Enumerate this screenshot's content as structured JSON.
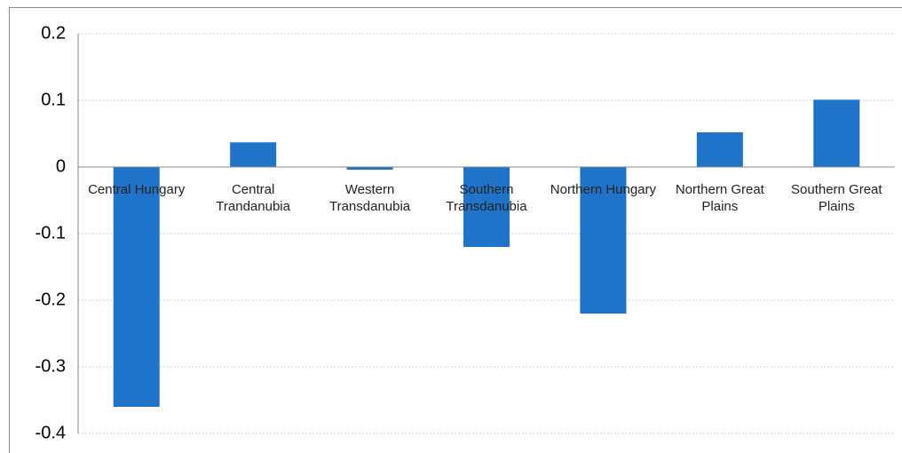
{
  "chart_data": {
    "type": "bar",
    "categories": [
      "Central Hungary",
      "Central Trandanubia",
      "Western Transdanubia",
      "Southern Transdanubia",
      "Northern Hungary",
      "Northern Great Plains",
      "Southern Great Plains"
    ],
    "values": [
      -0.36,
      0.037,
      -0.004,
      -0.12,
      -0.22,
      0.052,
      0.101
    ],
    "color": "#1f74c9",
    "ylim": [
      -0.4,
      0.2
    ],
    "yticks": [
      -0.4,
      -0.3,
      -0.2,
      -0.1,
      0,
      0.1,
      0.2
    ],
    "grid": true
  }
}
